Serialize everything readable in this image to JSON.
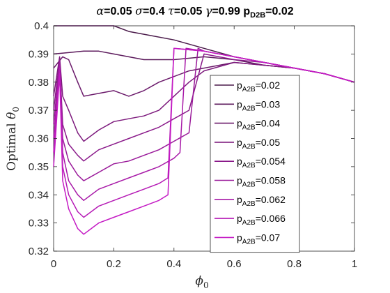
{
  "chart_data": {
    "type": "line",
    "title": "α=0.05 σ=0.4 τ=0.05 γ=0.99 p_D2B=0.02",
    "title_parts": [
      {
        "t": "α",
        "italic": true
      },
      {
        "t": "=0.05 "
      },
      {
        "t": "σ",
        "italic": true
      },
      {
        "t": "=0.4 "
      },
      {
        "t": "τ",
        "italic": true
      },
      {
        "t": "=0.05 "
      },
      {
        "t": "γ",
        "italic": true
      },
      {
        "t": "=0.99 "
      },
      {
        "t": "p"
      },
      {
        "t": "D2B",
        "sub": true
      },
      {
        "t": "=0.02"
      }
    ],
    "xlabel": "ϕ",
    "xlabel_sub": "0",
    "ylabel": "Optimal θ",
    "ylabel_sub": "0",
    "xlim": [
      0,
      1
    ],
    "ylim": [
      0.32,
      0.4
    ],
    "xticks": [
      "0",
      "0.2",
      "0.4",
      "0.6",
      "0.8",
      "1"
    ],
    "yticks": [
      "0.32",
      "0.33",
      "0.34",
      "0.35",
      "0.36",
      "0.37",
      "0.38",
      "0.39",
      "0.4"
    ],
    "grid": false,
    "legend_position": "lower-right",
    "legend_prefix": "p",
    "legend_sub": "A2B",
    "series": [
      {
        "name": "=0.02",
        "color": "#4a1a4a",
        "x": [
          0,
          0.1,
          0.2,
          0.25,
          0.3,
          0.4,
          0.5,
          0.6,
          0.7,
          0.8,
          0.9,
          1.0
        ],
        "y": [
          0.4,
          0.4,
          0.4,
          0.398,
          0.397,
          0.395,
          0.392,
          0.389,
          0.387,
          0.385,
          0.383,
          0.38
        ]
      },
      {
        "name": "=0.03",
        "color": "#5c1a5c",
        "x": [
          0,
          0.05,
          0.1,
          0.15,
          0.2,
          0.3,
          0.4,
          0.5,
          0.6,
          0.7,
          0.8,
          0.9,
          1.0
        ],
        "y": [
          0.39,
          0.3905,
          0.391,
          0.391,
          0.39,
          0.388,
          0.388,
          0.389,
          0.388,
          0.386,
          0.385,
          0.383,
          0.38
        ]
      },
      {
        "name": "=0.04",
        "color": "#6b1a6b",
        "x": [
          0,
          0.03,
          0.05,
          0.08,
          0.1,
          0.15,
          0.2,
          0.25,
          0.3,
          0.35,
          0.4,
          0.45,
          0.5,
          0.6,
          0.7,
          0.8,
          0.9,
          1.0
        ],
        "y": [
          0.385,
          0.389,
          0.388,
          0.38,
          0.375,
          0.376,
          0.377,
          0.375,
          0.377,
          0.38,
          0.382,
          0.384,
          0.385,
          0.387,
          0.386,
          0.385,
          0.383,
          0.38
        ]
      },
      {
        "name": "=0.05",
        "color": "#7d1a7d",
        "x": [
          0,
          0.02,
          0.03,
          0.05,
          0.08,
          0.1,
          0.15,
          0.2,
          0.25,
          0.3,
          0.35,
          0.4,
          0.45,
          0.5,
          0.6,
          0.7,
          0.8,
          0.9,
          1.0
        ],
        "y": [
          0.375,
          0.389,
          0.375,
          0.37,
          0.362,
          0.359,
          0.363,
          0.366,
          0.367,
          0.368,
          0.37,
          0.375,
          0.38,
          0.384,
          0.387,
          0.386,
          0.385,
          0.383,
          0.38
        ]
      },
      {
        "name": "=0.054",
        "color": "#8a1a8a",
        "x": [
          0,
          0.02,
          0.03,
          0.05,
          0.08,
          0.1,
          0.15,
          0.2,
          0.25,
          0.3,
          0.35,
          0.4,
          0.45,
          0.5,
          0.6,
          0.7,
          0.8,
          0.9,
          1.0
        ],
        "y": [
          0.37,
          0.388,
          0.365,
          0.358,
          0.354,
          0.352,
          0.356,
          0.358,
          0.36,
          0.362,
          0.364,
          0.367,
          0.37,
          0.39,
          0.388,
          0.387,
          0.385,
          0.383,
          0.38
        ]
      },
      {
        "name": "=0.058",
        "color": "#9a1a9a",
        "x": [
          0,
          0.02,
          0.03,
          0.05,
          0.08,
          0.1,
          0.15,
          0.2,
          0.25,
          0.3,
          0.35,
          0.4,
          0.45,
          0.48,
          0.5,
          0.6,
          0.7,
          0.8,
          0.9,
          1.0
        ],
        "y": [
          0.365,
          0.387,
          0.36,
          0.352,
          0.347,
          0.345,
          0.348,
          0.351,
          0.352,
          0.354,
          0.356,
          0.359,
          0.362,
          0.392,
          0.391,
          0.389,
          0.387,
          0.385,
          0.383,
          0.38
        ]
      },
      {
        "name": "=0.062",
        "color": "#a81aa8",
        "x": [
          0,
          0.02,
          0.03,
          0.05,
          0.08,
          0.1,
          0.15,
          0.2,
          0.25,
          0.3,
          0.35,
          0.4,
          0.42,
          0.44,
          0.5,
          0.6,
          0.7,
          0.8,
          0.9,
          1.0
        ],
        "y": [
          0.36,
          0.386,
          0.355,
          0.345,
          0.34,
          0.338,
          0.342,
          0.344,
          0.346,
          0.348,
          0.35,
          0.353,
          0.355,
          0.392,
          0.391,
          0.389,
          0.387,
          0.385,
          0.383,
          0.38
        ]
      },
      {
        "name": "=0.066",
        "color": "#b51ab5",
        "x": [
          0,
          0.02,
          0.03,
          0.05,
          0.08,
          0.1,
          0.15,
          0.2,
          0.25,
          0.3,
          0.35,
          0.38,
          0.4,
          0.5,
          0.6,
          0.7,
          0.8,
          0.9,
          1.0
        ],
        "y": [
          0.355,
          0.385,
          0.35,
          0.34,
          0.334,
          0.332,
          0.336,
          0.338,
          0.34,
          0.342,
          0.344,
          0.346,
          0.392,
          0.391,
          0.389,
          0.387,
          0.385,
          0.383,
          0.38
        ]
      },
      {
        "name": "=0.07",
        "color": "#c41ac4",
        "x": [
          0,
          0.02,
          0.03,
          0.05,
          0.08,
          0.1,
          0.15,
          0.2,
          0.25,
          0.3,
          0.35,
          0.38,
          0.4,
          0.5,
          0.6,
          0.7,
          0.8,
          0.9,
          1.0
        ],
        "y": [
          0.35,
          0.383,
          0.345,
          0.335,
          0.328,
          0.326,
          0.33,
          0.332,
          0.334,
          0.336,
          0.338,
          0.34,
          0.392,
          0.391,
          0.389,
          0.387,
          0.385,
          0.383,
          0.38
        ]
      }
    ]
  }
}
